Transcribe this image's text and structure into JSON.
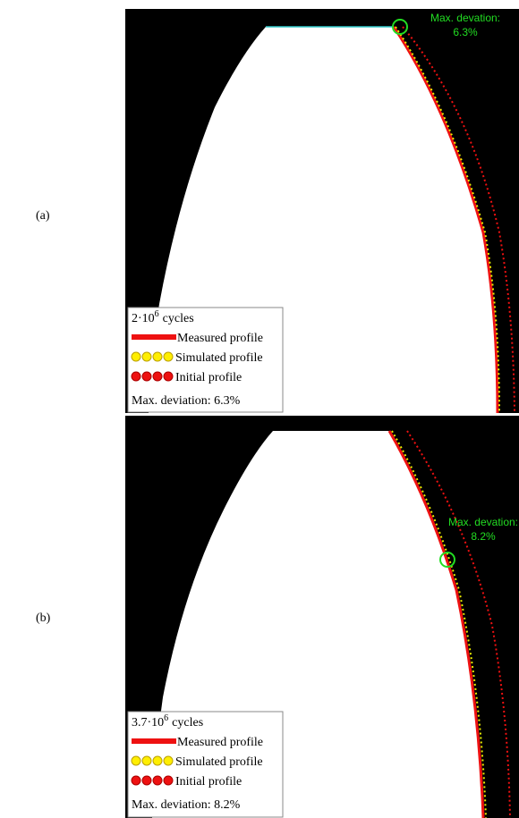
{
  "panels": [
    {
      "label": "(a)",
      "cycles": {
        "base": "2·10",
        "exponent": "6",
        "suffix": "cycles"
      },
      "legend": [
        "Measured profile",
        "Simulated profile",
        "Initial profile"
      ],
      "deviation_note": "Max. deviation: 6.3%",
      "annotation": [
        "Max. devation:",
        "6.3%"
      ]
    },
    {
      "label": "(b)",
      "cycles": {
        "base": "3.7·10",
        "exponent": "6",
        "suffix": "cycles"
      },
      "legend": [
        "Measured profile",
        "Simulated profile",
        "Initial profile"
      ],
      "deviation_note": "Max. deviation: 8.2%",
      "annotation": [
        "Max. devation:",
        "8.2%"
      ]
    }
  ]
}
